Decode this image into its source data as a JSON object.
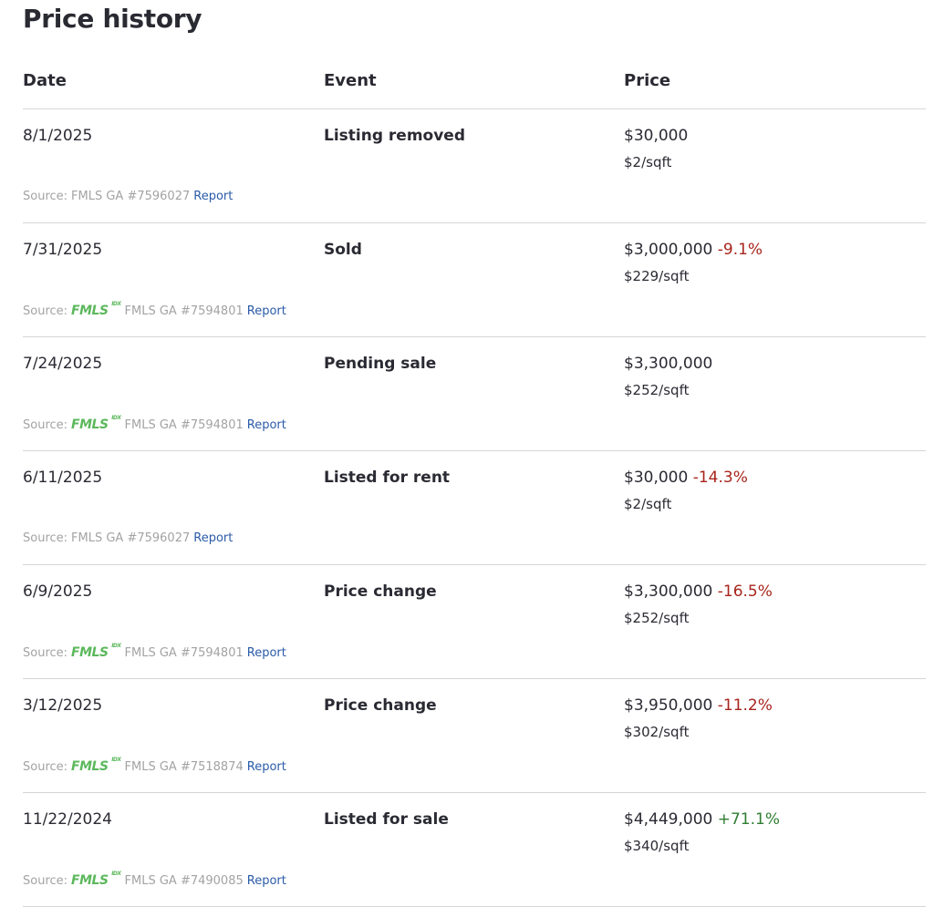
{
  "title": "Price history",
  "headers": {
    "date": "Date",
    "event": "Event",
    "price": "Price"
  },
  "source_label": "Source:",
  "logo_text": "FMLS",
  "logo_sup": "IDX",
  "report_label": "Report",
  "colors": {
    "negative": "#a8251d",
    "positive": "#2e7d32",
    "link": "#2a5ba8",
    "logo": "#5cb85c"
  },
  "rows": [
    {
      "date": "8/1/2025",
      "event": "Listing removed",
      "price": "$30,000",
      "change": "",
      "sqft": "$2/sqft",
      "source": "FMLS GA #7596027",
      "logo": false
    },
    {
      "date": "7/31/2025",
      "event": "Sold",
      "price": "$3,000,000",
      "change": "-9.1%",
      "sqft": "$229/sqft",
      "source": "FMLS GA #7594801",
      "logo": true
    },
    {
      "date": "7/24/2025",
      "event": "Pending sale",
      "price": "$3,300,000",
      "change": "",
      "sqft": "$252/sqft",
      "source": "FMLS GA #7594801",
      "logo": true
    },
    {
      "date": "6/11/2025",
      "event": "Listed for rent",
      "price": "$30,000",
      "change": "-14.3%",
      "sqft": "$2/sqft",
      "source": "FMLS GA #7596027",
      "logo": false
    },
    {
      "date": "6/9/2025",
      "event": "Price change",
      "price": "$3,300,000",
      "change": "-16.5%",
      "sqft": "$252/sqft",
      "source": "FMLS GA #7594801",
      "logo": true
    },
    {
      "date": "3/12/2025",
      "event": "Price change",
      "price": "$3,950,000",
      "change": "-11.2%",
      "sqft": "$302/sqft",
      "source": "FMLS GA #7518874",
      "logo": true
    },
    {
      "date": "11/22/2024",
      "event": "Listed for sale",
      "price": "$4,449,000",
      "change": "+71.1%",
      "sqft": "$340/sqft",
      "source": "FMLS GA #7490085",
      "logo": true
    }
  ]
}
